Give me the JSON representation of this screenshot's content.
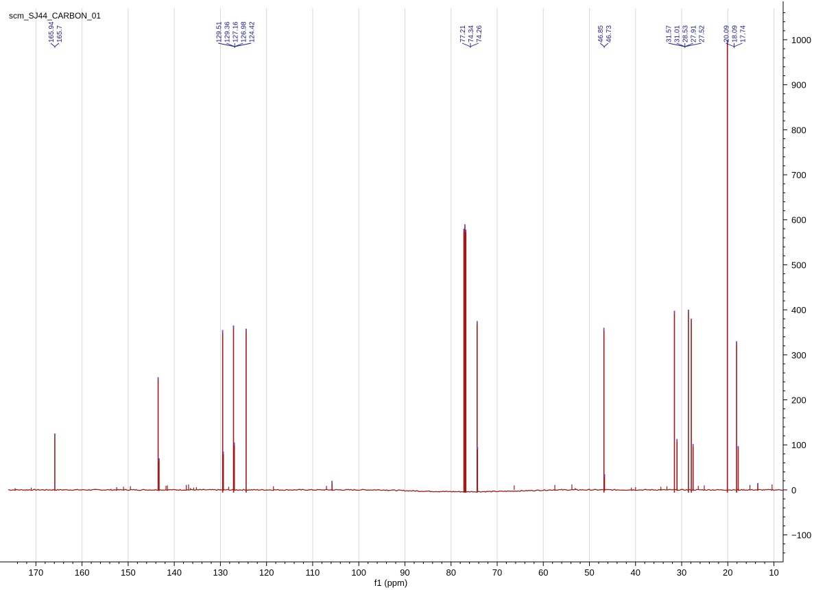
{
  "title": "scm_SJ44_CARBON_01",
  "chart_data": {
    "type": "line",
    "xlabel": "f1 (ppm)",
    "ylabel": "",
    "xlim": [
      176,
      8
    ],
    "ylim": [
      -160,
      1070
    ],
    "x_reversed": true,
    "x_ticks": [
      170,
      160,
      150,
      140,
      130,
      120,
      110,
      100,
      90,
      80,
      70,
      60,
      50,
      40,
      30,
      20,
      10
    ],
    "y_ticks": [
      -100,
      0,
      100,
      200,
      300,
      400,
      500,
      600,
      700,
      800,
      900,
      1000
    ],
    "grid": true,
    "series": [
      {
        "peaks": [
          {
            "x": 165.9,
            "y": 125
          },
          {
            "x": 143.5,
            "y": 250
          },
          {
            "x": 143.3,
            "y": 70
          },
          {
            "x": 129.51,
            "y": 355
          },
          {
            "x": 129.36,
            "y": 85
          },
          {
            "x": 127.16,
            "y": 365
          },
          {
            "x": 126.98,
            "y": 105
          },
          {
            "x": 124.42,
            "y": 358
          },
          {
            "x": 105.8,
            "y": 20
          },
          {
            "x": 77.21,
            "y": 580
          },
          {
            "x": 77.0,
            "y": 590
          },
          {
            "x": 76.79,
            "y": 578
          },
          {
            "x": 74.34,
            "y": 375
          },
          {
            "x": 74.26,
            "y": 95
          },
          {
            "x": 46.85,
            "y": 360
          },
          {
            "x": 46.73,
            "y": 35
          },
          {
            "x": 31.57,
            "y": 398
          },
          {
            "x": 31.01,
            "y": 113
          },
          {
            "x": 28.53,
            "y": 400
          },
          {
            "x": 27.91,
            "y": 380
          },
          {
            "x": 27.52,
            "y": 102
          },
          {
            "x": 20.09,
            "y": 1000
          },
          {
            "x": 18.09,
            "y": 330
          },
          {
            "x": 17.74,
            "y": 97
          },
          {
            "x": 13.5,
            "y": 15
          }
        ]
      }
    ],
    "peak_labels": [
      {
        "group": [
          "165.94",
          "165.7"
        ],
        "x": 165.9
      },
      {
        "group": [
          "129.51",
          "129.36",
          "127.16",
          "126.98",
          "124.42"
        ],
        "x": 126.9
      },
      {
        "group": [
          "77.21",
          "74.34",
          "74.26"
        ],
        "x": 75.8
      },
      {
        "group": [
          "46.85",
          "46.73"
        ],
        "x": 46.79
      },
      {
        "group": [
          "31.57",
          "31.01",
          "28.53",
          "27.91",
          "27.52"
        ],
        "x": 29.3
      },
      {
        "group": [
          "20.09",
          "18.09",
          "17.74"
        ],
        "x": 18.64
      }
    ],
    "colors": {
      "line": "#a01818",
      "peak_top": "#5a4fd8",
      "grid": "#d8d8d8",
      "axis": "#000000",
      "label": "#1a1a8c"
    }
  }
}
